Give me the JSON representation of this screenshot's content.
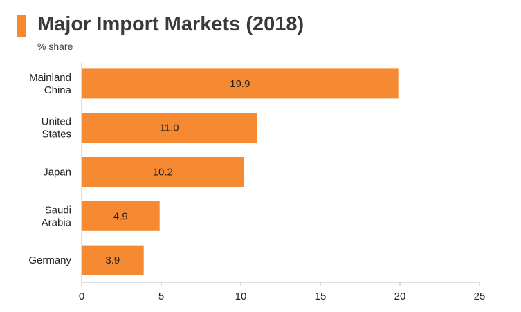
{
  "header": {
    "title": "Major Import Markets (2018)",
    "subtitle": "% share",
    "accent_color": "#F58A32"
  },
  "chart_data": {
    "type": "bar",
    "orientation": "horizontal",
    "title": "Major Import Markets (2018)",
    "subtitle": "% share",
    "categories": [
      [
        "Mainland",
        "China"
      ],
      [
        "United",
        "States"
      ],
      [
        "Japan"
      ],
      [
        "Saudi",
        "Arabia"
      ],
      [
        "Germany"
      ]
    ],
    "values": [
      19.9,
      11.0,
      10.2,
      4.9,
      3.9
    ],
    "data_labels": [
      "19.9",
      "11.0",
      "10.2",
      "4.9",
      "3.9"
    ],
    "xlim": [
      0,
      25
    ],
    "xticks": [
      0,
      5,
      10,
      15,
      20,
      25
    ],
    "grid": false,
    "legend": "none",
    "bar_color": "#F58A32",
    "axis_color": "#BFBFBF"
  }
}
